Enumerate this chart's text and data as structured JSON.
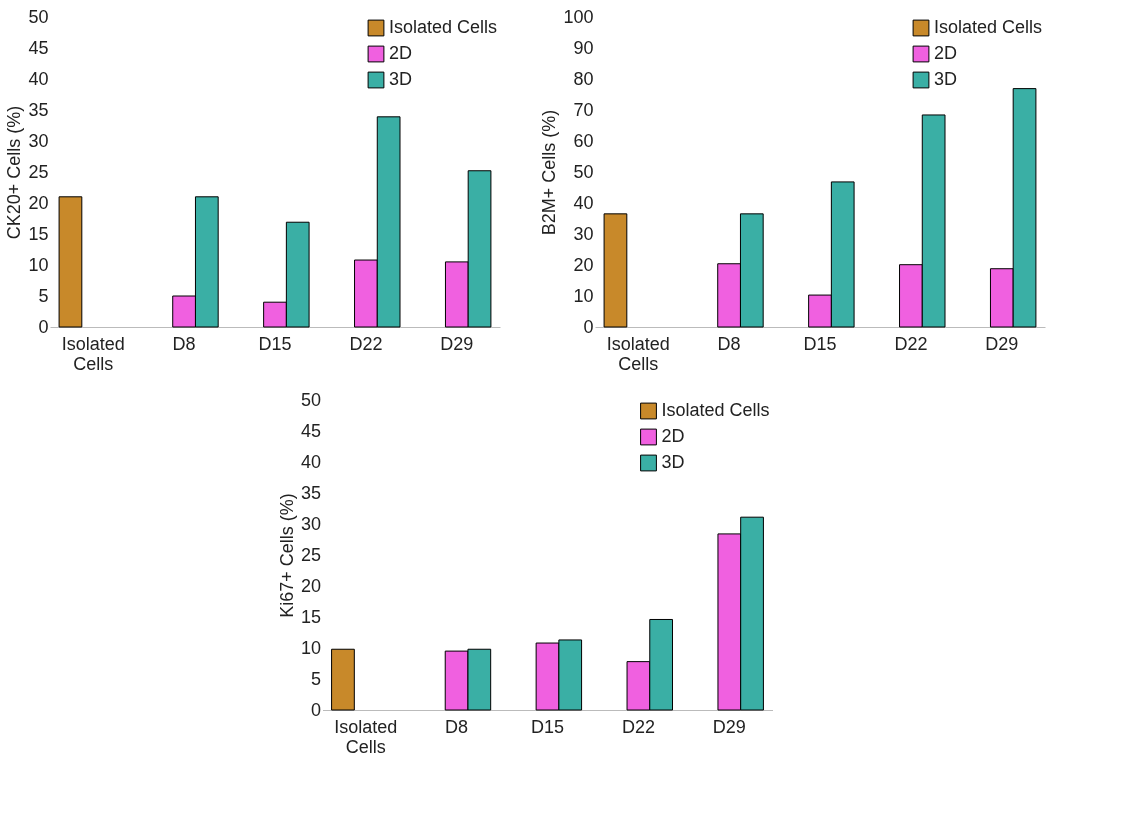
{
  "chart_data": [
    {
      "type": "bar",
      "ylabel": "CK20+ Cells (%)",
      "categories": [
        "Isolated Cells",
        "D8",
        "D15",
        "D22",
        "D29"
      ],
      "ylim": [
        0,
        50
      ],
      "yticks": [
        0,
        5,
        10,
        15,
        20,
        25,
        30,
        35,
        40,
        45,
        50
      ],
      "grid": false,
      "legend": "top right",
      "series": [
        {
          "name": "Isolated Cells",
          "color": "#c8892a",
          "values": [
            21.0,
            null,
            null,
            null,
            null
          ]
        },
        {
          "name": "2D",
          "color": "#f060e0",
          "values": [
            null,
            5.0,
            4.0,
            10.8,
            10.5
          ]
        },
        {
          "name": "3D",
          "color": "#3aafa5",
          "values": [
            null,
            21.0,
            16.9,
            33.9,
            25.2
          ]
        }
      ]
    },
    {
      "type": "bar",
      "ylabel": "B2M+ Cells (%)",
      "categories": [
        "Isolated Cells",
        "D8",
        "D15",
        "D22",
        "D29"
      ],
      "ylim": [
        0,
        100
      ],
      "yticks": [
        0,
        10,
        20,
        30,
        40,
        50,
        60,
        70,
        80,
        90,
        100
      ],
      "grid": false,
      "legend": "top right",
      "series": [
        {
          "name": "Isolated Cells",
          "color": "#c8892a",
          "values": [
            36.5,
            null,
            null,
            null,
            null
          ]
        },
        {
          "name": "2D",
          "color": "#f060e0",
          "values": [
            null,
            20.4,
            10.3,
            20.1,
            18.8
          ]
        },
        {
          "name": "3D",
          "color": "#3aafa5",
          "values": [
            null,
            36.5,
            46.8,
            68.4,
            76.9
          ]
        }
      ]
    },
    {
      "type": "bar",
      "ylabel": "Ki67+ Cells (%)",
      "categories": [
        "Isolated Cells",
        "D8",
        "D15",
        "D22",
        "D29"
      ],
      "ylim": [
        0,
        50
      ],
      "yticks": [
        0,
        5,
        10,
        15,
        20,
        25,
        30,
        35,
        40,
        45,
        50
      ],
      "grid": false,
      "legend": "top right",
      "series": [
        {
          "name": "Isolated Cells",
          "color": "#c8892a",
          "values": [
            9.8,
            null,
            null,
            null,
            null
          ]
        },
        {
          "name": "2D",
          "color": "#f060e0",
          "values": [
            null,
            9.5,
            10.8,
            7.8,
            28.4
          ]
        },
        {
          "name": "3D",
          "color": "#3aafa5",
          "values": [
            null,
            9.8,
            11.3,
            14.6,
            31.1
          ]
        }
      ]
    }
  ]
}
